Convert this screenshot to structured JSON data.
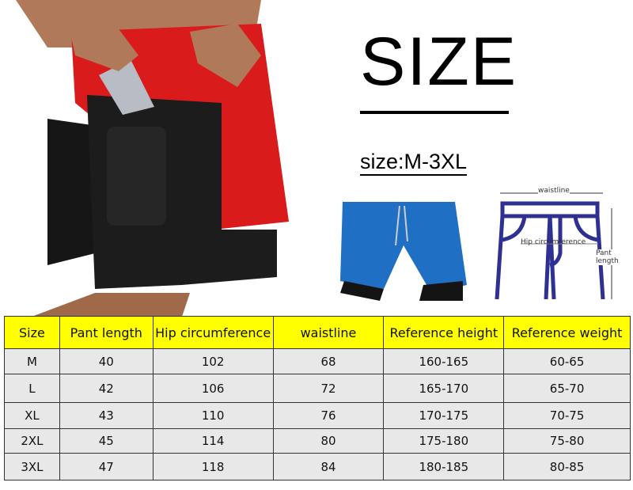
{
  "heading": "SIZE",
  "size_range": "size:M-3XL",
  "diagram": {
    "waist_label": "waistline",
    "hip_label": "Hip circumference",
    "length_label": "Pant length",
    "line_color": "#2e3192"
  },
  "colors": {
    "header_bg": "#ffff00",
    "cell_bg": "#e8e8e8",
    "shorts_blue": "#1f6fc4",
    "shorts_red": "#d91b1b"
  },
  "table": {
    "headers": [
      "Size",
      "Pant length",
      "Hip circumference",
      "waistline",
      "Reference height",
      "Reference weight"
    ],
    "rows": [
      [
        "M",
        "40",
        "102",
        "68",
        "160-165",
        "60-65"
      ],
      [
        "L",
        "42",
        "106",
        "72",
        "165-170",
        "65-70"
      ],
      [
        "XL",
        "43",
        "110",
        "76",
        "170-175",
        "70-75"
      ],
      [
        "2XL",
        "45",
        "114",
        "80",
        "175-180",
        "75-80"
      ],
      [
        "3XL",
        "47",
        "118",
        "84",
        "180-185",
        "80-85"
      ]
    ]
  }
}
